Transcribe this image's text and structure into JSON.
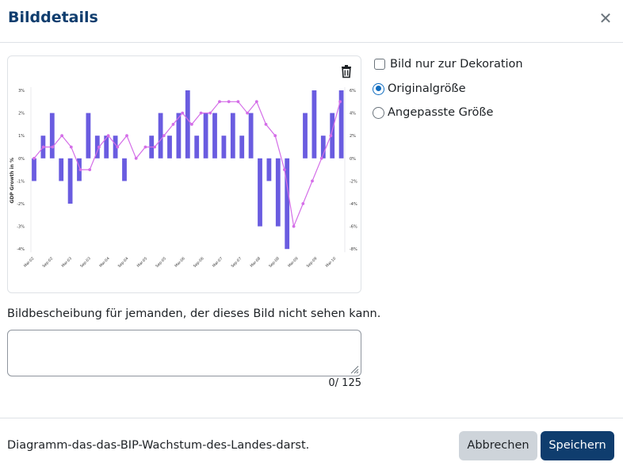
{
  "dialog": {
    "title": "Bilddetails",
    "close_icon": "close-icon"
  },
  "options": {
    "decorative_label": "Bild nur zur Dekoration",
    "decorative_checked": false,
    "original_size_label": "Originalgröße",
    "original_size_checked": true,
    "custom_size_label": "Angepasste Größe",
    "custom_size_checked": false
  },
  "description": {
    "label": "Bildbescheibung für jemanden, der dieses Bild nicht sehen kann.",
    "value": "",
    "counter": "0/ 125"
  },
  "footer": {
    "filename": "Diagramm-das-das-BIP-Wachstum-des-Landes-darst...",
    "cancel_label": "Abbrechen",
    "save_label": "Speichern"
  },
  "colors": {
    "title": "#0f3d6e",
    "bar": "#6a5ce0",
    "line": "#d46ee8",
    "primary_button": "#0f3d6e",
    "secondary_button": "#ced4da"
  },
  "chart_data": {
    "type": "bar",
    "ylabel": "GDP Growth in %",
    "ylim": [
      -4,
      3
    ],
    "y_ticks_left": [
      "3%",
      "2%",
      "1%",
      "0%",
      "-1%",
      "-2%",
      "-3%",
      "-4%"
    ],
    "y_ticks_right": [
      "6%",
      "4%",
      "2%",
      "0%",
      "-2%",
      "-4%",
      "-6%",
      "-8%"
    ],
    "x_tick_labels": [
      "Mar-02",
      "Sep-02",
      "Mar-03",
      "Sep-03",
      "Mar-04",
      "Sep-04",
      "Mar-05",
      "Sep-05",
      "Mar-06",
      "Sep-06",
      "Mar-07",
      "Sep-07",
      "Mar-08",
      "Sep-08",
      "Mar-09",
      "Sep-09",
      "Mar-10"
    ],
    "series": [
      {
        "type": "bar",
        "values": [
          -1,
          1,
          2,
          -1,
          -2,
          -1,
          2,
          1,
          1,
          1,
          -1,
          0,
          0,
          1,
          2,
          1,
          2,
          3,
          1,
          2,
          2,
          1,
          2,
          1,
          2,
          -3,
          -1,
          -3,
          -4,
          0,
          2,
          3,
          1,
          2,
          3
        ]
      },
      {
        "type": "line",
        "values": [
          0,
          1,
          1,
          2,
          1,
          -1,
          -1,
          1,
          2,
          1,
          2,
          0,
          1,
          1,
          2,
          3,
          4,
          3,
          4,
          4,
          5,
          5,
          5,
          4,
          5,
          3,
          2,
          -1,
          -6,
          -4,
          -2,
          0,
          2,
          5
        ]
      }
    ]
  }
}
